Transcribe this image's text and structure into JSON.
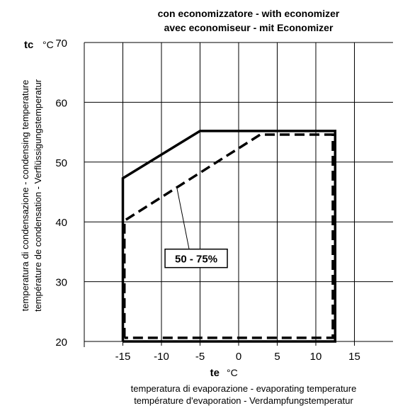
{
  "chart_data": {
    "type": "line",
    "title": "con economizzatore  -  with economizer",
    "subtitle": "avec economiseur  -  mit Economizer",
    "x_axis": {
      "symbol": "te",
      "unit": "°C",
      "label_line1": "temperatura di evaporazione  -   evaporating temperature",
      "label_line2": "température d'evaporation  -  Verdampfungstemperatur",
      "range": [
        -20,
        20
      ],
      "ticks": [
        -15,
        -10,
        -5,
        0,
        5,
        10,
        15
      ],
      "tick_labels": [
        "-15",
        "-10",
        "-5",
        "0",
        "5",
        "10",
        "15"
      ]
    },
    "y_axis": {
      "symbol": "tc",
      "unit": "°C",
      "label_line1": "temperatura di condensazione - condensing temperature",
      "label_line2": "température de condensation - Verflüssigungstemperatur",
      "range": [
        20,
        70
      ],
      "ticks": [
        20,
        30,
        40,
        50,
        60,
        70
      ],
      "tick_labels": [
        "20",
        "30",
        "40",
        "50",
        "60",
        "70"
      ]
    },
    "grid": true,
    "series": [
      {
        "style": "solid",
        "points": [
          [
            -15,
            20
          ],
          [
            -15,
            47.3
          ],
          [
            -5,
            55.2
          ],
          [
            12.5,
            55.2
          ],
          [
            12.5,
            20
          ],
          [
            -15,
            20
          ]
        ]
      },
      {
        "name": "50 - 75%",
        "style": "dashed",
        "points": [
          [
            -14.8,
            20.6
          ],
          [
            -14.8,
            40.2
          ],
          [
            2.8,
            54.6
          ],
          [
            12.2,
            54.6
          ],
          [
            12.2,
            20.6
          ],
          [
            -14.8,
            20.6
          ]
        ]
      }
    ],
    "annotation": {
      "text": "50 - 75%",
      "points_to": [
        -8,
        45.7
      ],
      "box_center": [
        -5.5,
        33.9
      ]
    }
  }
}
